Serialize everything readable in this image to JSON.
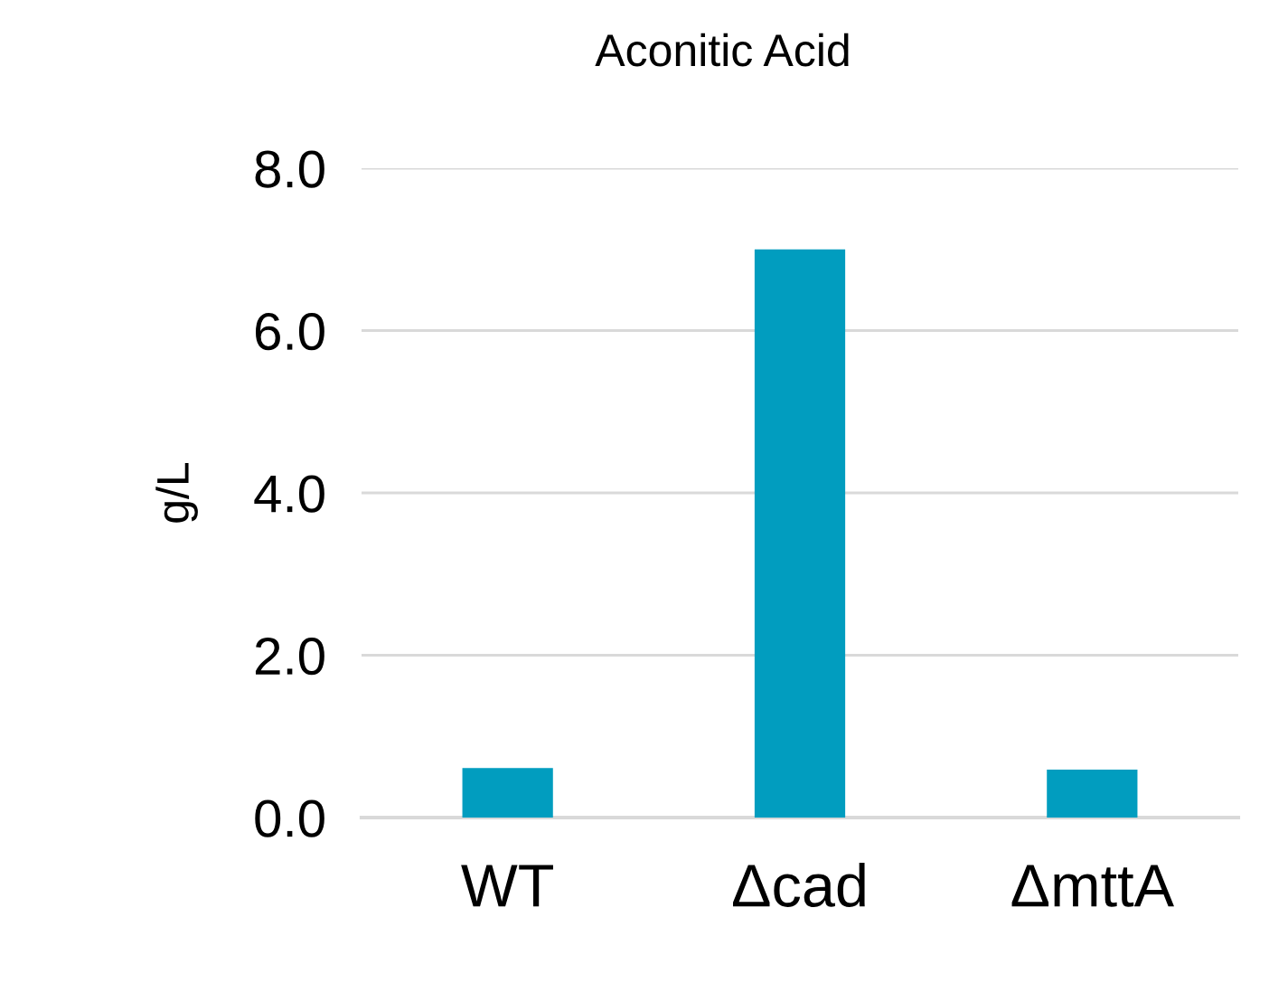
{
  "chart_data": {
    "type": "bar",
    "title": "Aconitic Acid",
    "ylabel": "g/L",
    "categories": [
      "WT",
      "Δcad",
      "ΔmttA"
    ],
    "values": [
      0.61,
      7.0,
      0.59
    ],
    "color": "#019dbf",
    "ylim": [
      0,
      8
    ],
    "yticks": [
      {
        "value": 0,
        "label": "0.0"
      },
      {
        "value": 2,
        "label": "2.0"
      },
      {
        "value": 4,
        "label": "4.0"
      },
      {
        "value": 6,
        "label": "6.0"
      },
      {
        "value": 8,
        "label": "8.0"
      }
    ],
    "grid": "y"
  }
}
